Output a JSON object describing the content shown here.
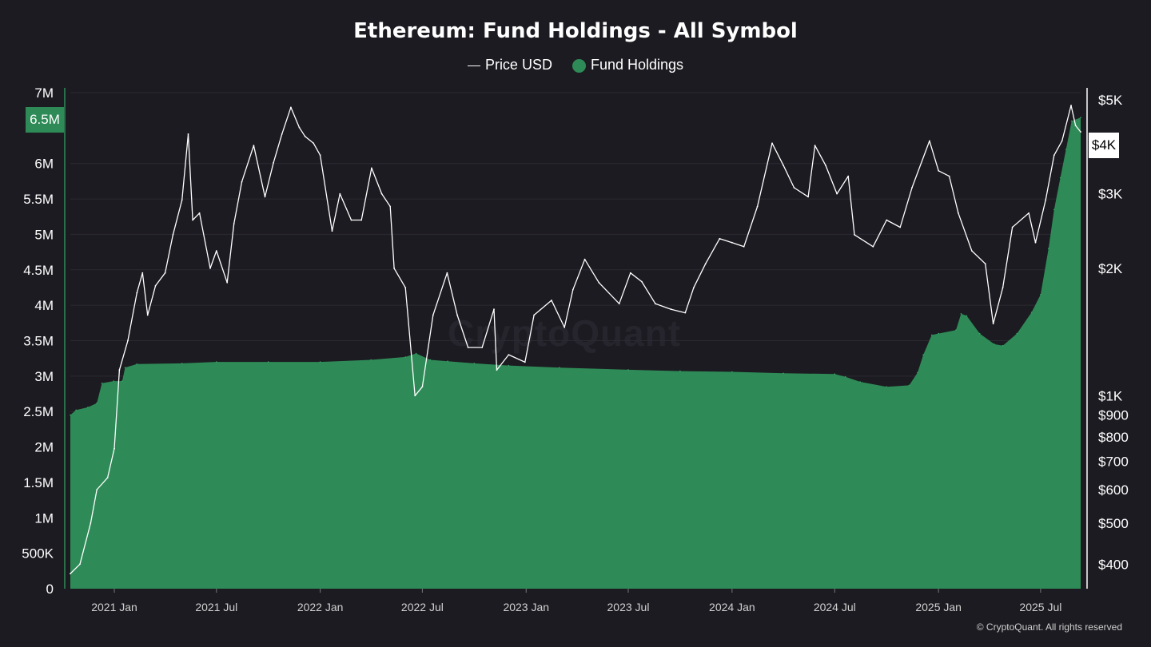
{
  "title": "Ethereum: Fund Holdings - All Symbol",
  "legend": {
    "price_label": "Price USD",
    "holdings_label": "Fund Holdings"
  },
  "watermark": "CryptoQuant",
  "copyright": "© CryptoQuant. All rights reserved",
  "badges": {
    "left": "6.5M",
    "right": "$4K"
  },
  "chart_data": {
    "type": "area",
    "title": "Ethereum: Fund Holdings - All Symbol",
    "x_range": [
      "2020-10-15",
      "2025-09-10"
    ],
    "x_ticks": [
      {
        "label": "2021 Jan",
        "date": "2021-01-01"
      },
      {
        "label": "2021 Jul",
        "date": "2021-07-01"
      },
      {
        "label": "2022 Jan",
        "date": "2022-01-01"
      },
      {
        "label": "2022 Jul",
        "date": "2022-07-01"
      },
      {
        "label": "2023 Jan",
        "date": "2023-01-01"
      },
      {
        "label": "2023 Jul",
        "date": "2023-07-01"
      },
      {
        "label": "2024 Jan",
        "date": "2024-01-01"
      },
      {
        "label": "2024 Jul",
        "date": "2024-07-01"
      },
      {
        "label": "2025 Jan",
        "date": "2025-01-01"
      },
      {
        "label": "2025 Jul",
        "date": "2025-07-01"
      }
    ],
    "left_axis": {
      "range": [
        0,
        7000000
      ],
      "ticks": [
        {
          "label": "0",
          "value": 0
        },
        {
          "label": "500K",
          "value": 500000
        },
        {
          "label": "1M",
          "value": 1000000
        },
        {
          "label": "1.5M",
          "value": 1500000
        },
        {
          "label": "2M",
          "value": 2000000
        },
        {
          "label": "2.5M",
          "value": 2500000
        },
        {
          "label": "3M",
          "value": 3000000
        },
        {
          "label": "3.5M",
          "value": 3500000
        },
        {
          "label": "4M",
          "value": 4000000
        },
        {
          "label": "4.5M",
          "value": 4500000
        },
        {
          "label": "5M",
          "value": 5000000
        },
        {
          "label": "5.5M",
          "value": 5500000
        },
        {
          "label": "6M",
          "value": 6000000
        },
        {
          "label": "7M",
          "value": 7000000
        }
      ]
    },
    "right_axis": {
      "scale": "log",
      "range": [
        350,
        5200
      ],
      "ticks": [
        {
          "label": "$5K",
          "value": 5000
        },
        {
          "label": "$3K",
          "value": 3000
        },
        {
          "label": "$2K",
          "value": 2000
        },
        {
          "label": "$1K",
          "value": 1000
        },
        {
          "label": "$900",
          "value": 900
        },
        {
          "label": "$800",
          "value": 800
        },
        {
          "label": "$700",
          "value": 700
        },
        {
          "label": "$600",
          "value": 600
        },
        {
          "label": "$500",
          "value": 500
        },
        {
          "label": "$400",
          "value": 400
        }
      ]
    },
    "grid": true,
    "legend_position": "top-center",
    "colors": {
      "holdings": "#2e8b57",
      "price": "#ffffff",
      "background": "#1c1b21",
      "grid": "#2b2a32"
    },
    "series": [
      {
        "name": "Fund Holdings",
        "type": "area",
        "axis": "left",
        "points": [
          [
            "2020-10-15",
            2450000
          ],
          [
            "2020-10-25",
            2520000
          ],
          [
            "2020-11-15",
            2560000
          ],
          [
            "2020-12-01",
            2620000
          ],
          [
            "2020-12-10",
            2900000
          ],
          [
            "2020-12-31",
            2930000
          ],
          [
            "2021-01-15",
            2930000
          ],
          [
            "2021-01-20",
            3120000
          ],
          [
            "2021-02-10",
            3170000
          ],
          [
            "2021-05-01",
            3180000
          ],
          [
            "2021-07-01",
            3200000
          ],
          [
            "2021-10-01",
            3200000
          ],
          [
            "2022-01-01",
            3200000
          ],
          [
            "2022-04-01",
            3230000
          ],
          [
            "2022-06-01",
            3270000
          ],
          [
            "2022-06-20",
            3320000
          ],
          [
            "2022-07-15",
            3230000
          ],
          [
            "2022-08-15",
            3210000
          ],
          [
            "2022-10-01",
            3180000
          ],
          [
            "2022-12-01",
            3150000
          ],
          [
            "2023-03-01",
            3120000
          ],
          [
            "2023-07-01",
            3090000
          ],
          [
            "2023-10-01",
            3070000
          ],
          [
            "2024-01-01",
            3060000
          ],
          [
            "2024-04-01",
            3040000
          ],
          [
            "2024-07-01",
            3030000
          ],
          [
            "2024-07-20",
            2990000
          ],
          [
            "2024-08-15",
            2920000
          ],
          [
            "2024-10-01",
            2850000
          ],
          [
            "2024-11-10",
            2870000
          ],
          [
            "2024-11-25",
            3050000
          ],
          [
            "2024-12-05",
            3300000
          ],
          [
            "2024-12-20",
            3580000
          ],
          [
            "2025-01-01",
            3600000
          ],
          [
            "2025-02-01",
            3650000
          ],
          [
            "2025-02-10",
            3880000
          ],
          [
            "2025-02-20",
            3850000
          ],
          [
            "2025-03-15",
            3600000
          ],
          [
            "2025-04-10",
            3450000
          ],
          [
            "2025-04-25",
            3430000
          ],
          [
            "2025-05-20",
            3600000
          ],
          [
            "2025-06-15",
            3900000
          ],
          [
            "2025-07-01",
            4150000
          ],
          [
            "2025-07-15",
            4800000
          ],
          [
            "2025-07-25",
            5350000
          ],
          [
            "2025-08-05",
            5800000
          ],
          [
            "2025-08-15",
            6200000
          ],
          [
            "2025-08-25",
            6600000
          ],
          [
            "2025-09-10",
            6650000
          ]
        ]
      },
      {
        "name": "Price USD",
        "type": "line",
        "axis": "right",
        "points": [
          [
            "2020-10-15",
            380
          ],
          [
            "2020-11-01",
            400
          ],
          [
            "2020-11-20",
            500
          ],
          [
            "2020-12-01",
            600
          ],
          [
            "2020-12-20",
            640
          ],
          [
            "2021-01-01",
            750
          ],
          [
            "2021-01-10",
            1150
          ],
          [
            "2021-01-25",
            1350
          ],
          [
            "2021-02-10",
            1750
          ],
          [
            "2021-02-20",
            1950
          ],
          [
            "2021-03-01",
            1550
          ],
          [
            "2021-03-15",
            1820
          ],
          [
            "2021-04-01",
            1950
          ],
          [
            "2021-04-15",
            2400
          ],
          [
            "2021-05-01",
            2900
          ],
          [
            "2021-05-12",
            4150
          ],
          [
            "2021-05-20",
            2600
          ],
          [
            "2021-06-01",
            2700
          ],
          [
            "2021-06-20",
            2000
          ],
          [
            "2021-07-01",
            2200
          ],
          [
            "2021-07-20",
            1850
          ],
          [
            "2021-08-01",
            2550
          ],
          [
            "2021-08-15",
            3200
          ],
          [
            "2021-09-05",
            3900
          ],
          [
            "2021-09-25",
            2950
          ],
          [
            "2021-10-10",
            3550
          ],
          [
            "2021-10-25",
            4150
          ],
          [
            "2021-11-10",
            4800
          ],
          [
            "2021-11-25",
            4300
          ],
          [
            "2021-12-05",
            4100
          ],
          [
            "2021-12-20",
            3950
          ],
          [
            "2022-01-01",
            3700
          ],
          [
            "2022-01-22",
            2450
          ],
          [
            "2022-02-05",
            3000
          ],
          [
            "2022-02-25",
            2600
          ],
          [
            "2022-03-15",
            2600
          ],
          [
            "2022-04-02",
            3450
          ],
          [
            "2022-04-20",
            3000
          ],
          [
            "2022-05-05",
            2800
          ],
          [
            "2022-05-12",
            2000
          ],
          [
            "2022-06-01",
            1800
          ],
          [
            "2022-06-18",
            1000
          ],
          [
            "2022-07-01",
            1050
          ],
          [
            "2022-07-20",
            1550
          ],
          [
            "2022-08-14",
            1950
          ],
          [
            "2022-09-01",
            1550
          ],
          [
            "2022-09-20",
            1300
          ],
          [
            "2022-10-15",
            1300
          ],
          [
            "2022-11-05",
            1600
          ],
          [
            "2022-11-10",
            1150
          ],
          [
            "2022-12-01",
            1250
          ],
          [
            "2022-12-30",
            1200
          ],
          [
            "2023-01-15",
            1550
          ],
          [
            "2023-02-15",
            1680
          ],
          [
            "2023-03-10",
            1450
          ],
          [
            "2023-03-25",
            1780
          ],
          [
            "2023-04-15",
            2100
          ],
          [
            "2023-05-10",
            1850
          ],
          [
            "2023-06-15",
            1650
          ],
          [
            "2023-07-05",
            1950
          ],
          [
            "2023-07-25",
            1860
          ],
          [
            "2023-08-18",
            1650
          ],
          [
            "2023-09-15",
            1600
          ],
          [
            "2023-10-10",
            1570
          ],
          [
            "2023-10-25",
            1800
          ],
          [
            "2023-11-15",
            2050
          ],
          [
            "2023-12-10",
            2350
          ],
          [
            "2024-01-01",
            2300
          ],
          [
            "2024-01-22",
            2250
          ],
          [
            "2024-02-15",
            2800
          ],
          [
            "2024-03-12",
            3950
          ],
          [
            "2024-04-01",
            3500
          ],
          [
            "2024-04-20",
            3100
          ],
          [
            "2024-05-15",
            2950
          ],
          [
            "2024-05-27",
            3900
          ],
          [
            "2024-06-15",
            3500
          ],
          [
            "2024-07-05",
            3000
          ],
          [
            "2024-07-25",
            3300
          ],
          [
            "2024-08-05",
            2400
          ],
          [
            "2024-09-07",
            2250
          ],
          [
            "2024-10-01",
            2600
          ],
          [
            "2024-10-25",
            2500
          ],
          [
            "2024-11-15",
            3100
          ],
          [
            "2024-12-16",
            4000
          ],
          [
            "2025-01-01",
            3400
          ],
          [
            "2025-01-20",
            3300
          ],
          [
            "2025-02-05",
            2700
          ],
          [
            "2025-03-01",
            2200
          ],
          [
            "2025-03-25",
            2050
          ],
          [
            "2025-04-08",
            1480
          ],
          [
            "2025-04-25",
            1800
          ],
          [
            "2025-05-12",
            2500
          ],
          [
            "2025-06-10",
            2700
          ],
          [
            "2025-06-22",
            2300
          ],
          [
            "2025-07-10",
            2900
          ],
          [
            "2025-07-25",
            3700
          ],
          [
            "2025-08-08",
            4000
          ],
          [
            "2025-08-24",
            4850
          ],
          [
            "2025-09-01",
            4350
          ],
          [
            "2025-09-10",
            4200
          ]
        ]
      }
    ]
  }
}
